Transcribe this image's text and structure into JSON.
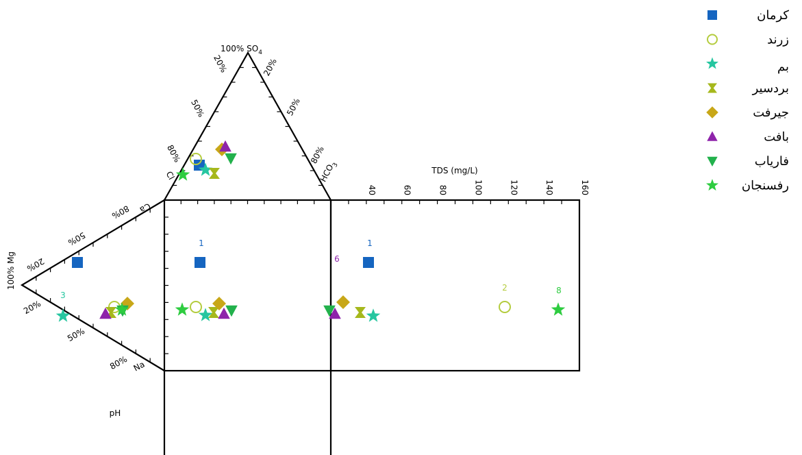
{
  "chart_data": {
    "type": "scatter",
    "title": "",
    "plots": {
      "sulfate_triangle": {
        "apex_label": "100% SO",
        "apex_sub": "4",
        "left_label": "Cl",
        "right_label": "HCO",
        "right_sub": "3",
        "left_ticks": [
          "20%",
          "50%",
          "80%"
        ],
        "right_ticks": [
          "20%",
          "50%",
          "80%"
        ]
      },
      "cation_triangle": {
        "apex_label": "100% Mg",
        "bottom_label": "Na",
        "top_label": "Ca",
        "upper_ticks": [
          "20%",
          "50%",
          "80%"
        ],
        "lower_ticks": [
          "20%",
          "50%",
          "80%"
        ]
      },
      "tds_panel": {
        "xlabel": "TDS (mg/L)",
        "xlim": [
          20,
          160
        ],
        "ticks": [
          "40",
          "60",
          "80",
          "100",
          "120",
          "140",
          "160"
        ]
      },
      "ph_panel": {
        "label": "pH"
      }
    },
    "legend_position": "top-right",
    "series": [
      {
        "name": "کرمان",
        "marker": "square",
        "color": "#1565c0",
        "so4_pct": 30,
        "cl_pct": 50,
        "mg_pct": 30,
        "na_pct": 10,
        "tds": 42,
        "count_label": "1"
      },
      {
        "name": "زرند",
        "marker": "circle-open",
        "color": "#b4cc3e",
        "so4_pct": 35,
        "cl_pct": 55,
        "mg_pct": 17,
        "na_pct": 30,
        "tds": 118,
        "count_label": "2"
      },
      {
        "name": "بم",
        "marker": "star",
        "color": "#26c6a0",
        "so4_pct": 25,
        "cl_pct": 45,
        "mg_pct": 25,
        "na_pct": 5,
        "tds": 43,
        "count_label": "3"
      },
      {
        "name": "بردسیر",
        "marker": "hourglass",
        "color": "#a6b81c",
        "so4_pct": 22,
        "cl_pct": 38,
        "mg_pct": 17,
        "na_pct": 30,
        "tds": 37,
        "count_label": ""
      },
      {
        "name": "جیرفت",
        "marker": "diamond",
        "color": "#c8a718",
        "so4_pct": 37,
        "cl_pct": 30,
        "mg_pct": 17,
        "na_pct": 35,
        "tds": 28,
        "count_label": ""
      },
      {
        "name": "بافت",
        "marker": "triangle-up",
        "color": "#8e24aa",
        "so4_pct": 38,
        "cl_pct": 28,
        "mg_pct": 17,
        "na_pct": 22,
        "tds": 23,
        "count_label": "6"
      },
      {
        "name": "فاریاب",
        "marker": "triangle-down",
        "color": "#22b14c",
        "so4_pct": 32,
        "cl_pct": 25,
        "mg_pct": 17,
        "na_pct": 40,
        "tds": 20,
        "count_label": ""
      },
      {
        "name": "رفسنجان",
        "marker": "star",
        "color": "#2ecc40",
        "so4_pct": 18,
        "cl_pct": 62,
        "mg_pct": 17,
        "na_pct": 40,
        "tds": 147,
        "count_label": "8"
      }
    ]
  }
}
